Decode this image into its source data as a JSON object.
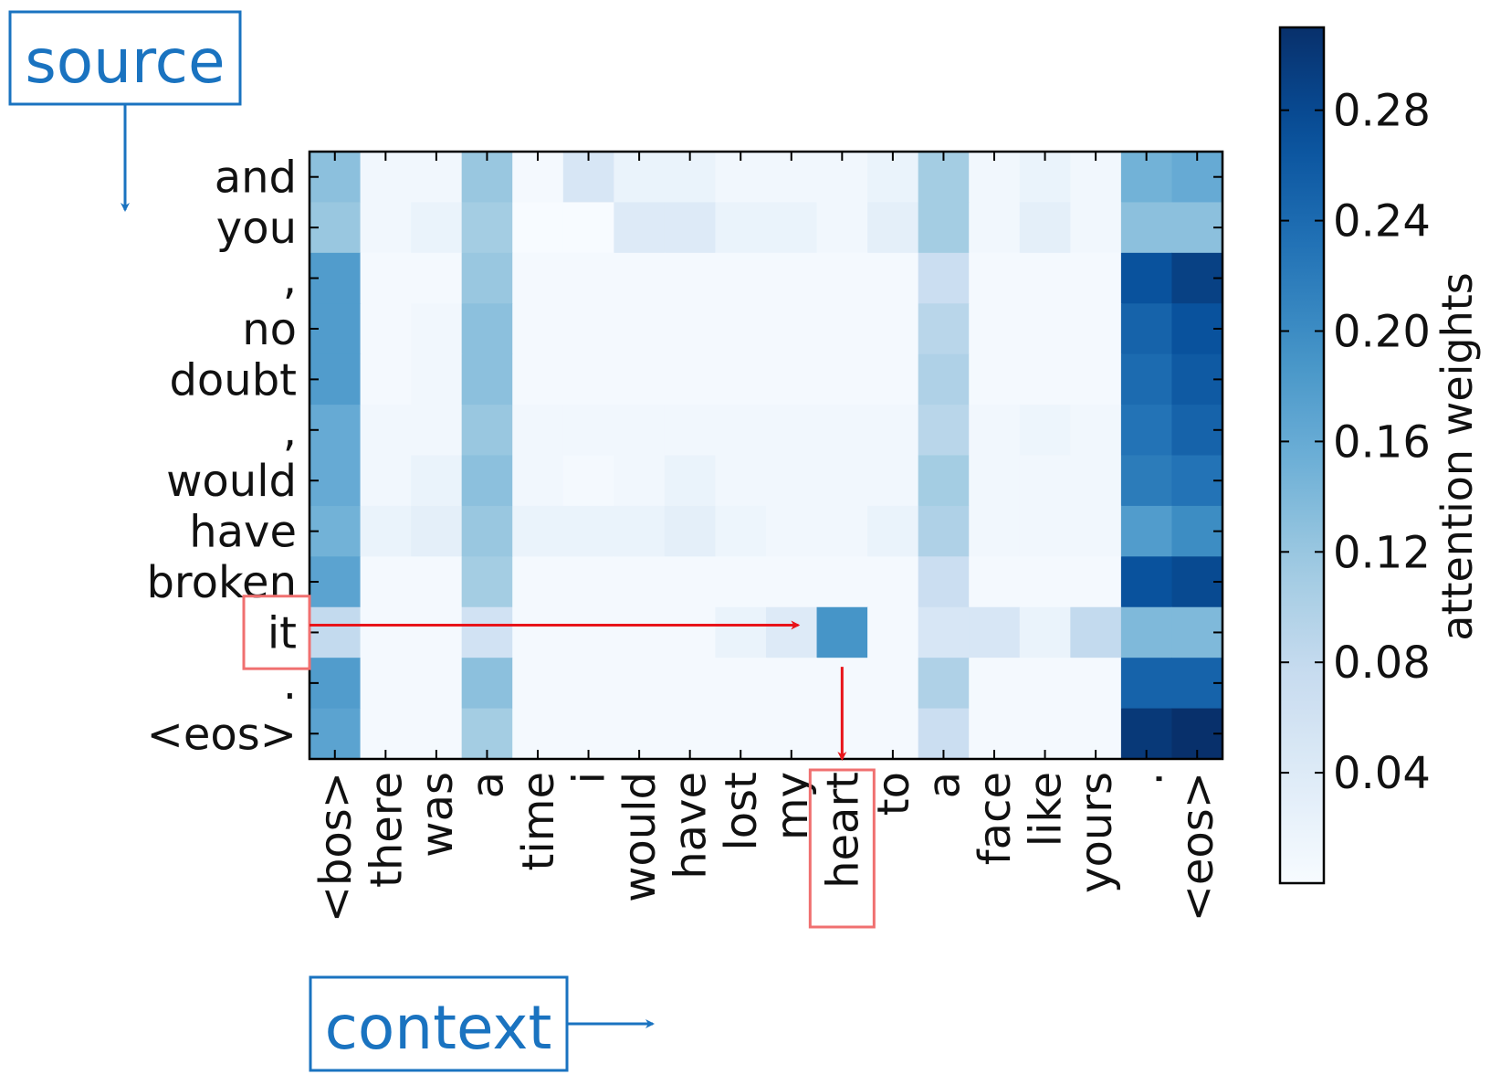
{
  "annotations": {
    "source_label": "source",
    "context_label": "context",
    "source_color": "#1a73c0",
    "highlight_color": "#f07070",
    "arrow_color": "#e8141a",
    "highlight_row": "it",
    "highlight_col": "heart"
  },
  "chart_data": {
    "type": "heatmap",
    "title": "",
    "xlabel": "",
    "ylabel": "",
    "colormap": "Blues",
    "x": [
      "<bos>",
      "there",
      "was",
      "a",
      "time",
      "i",
      "would",
      "have",
      "lost",
      "my",
      "heart",
      "to",
      "a",
      "face",
      "like",
      "yours",
      ".",
      "<eos>"
    ],
    "y": [
      "and",
      "you",
      ",",
      "no",
      "doubt",
      ",",
      "would",
      "have",
      "broken",
      "it",
      ".",
      "<eos>"
    ],
    "values": [
      [
        0.13,
        0.01,
        0.01,
        0.12,
        0.005,
        0.05,
        0.02,
        0.02,
        0.01,
        0.01,
        0.01,
        0.02,
        0.11,
        0.01,
        0.02,
        0.01,
        0.15,
        0.16
      ],
      [
        0.12,
        0.01,
        0.02,
        0.11,
        0.0,
        0.0,
        0.04,
        0.04,
        0.02,
        0.02,
        0.01,
        0.03,
        0.11,
        0.01,
        0.03,
        0.01,
        0.13,
        0.13
      ],
      [
        0.18,
        0.005,
        0.005,
        0.12,
        0.005,
        0.005,
        0.005,
        0.005,
        0.005,
        0.005,
        0.005,
        0.005,
        0.07,
        0.005,
        0.005,
        0.005,
        0.27,
        0.29
      ],
      [
        0.18,
        0.005,
        0.01,
        0.13,
        0.005,
        0.005,
        0.005,
        0.005,
        0.005,
        0.005,
        0.005,
        0.005,
        0.09,
        0.005,
        0.005,
        0.005,
        0.25,
        0.27
      ],
      [
        0.18,
        0.005,
        0.01,
        0.13,
        0.005,
        0.005,
        0.005,
        0.005,
        0.005,
        0.005,
        0.005,
        0.005,
        0.1,
        0.005,
        0.005,
        0.005,
        0.24,
        0.26
      ],
      [
        0.16,
        0.01,
        0.01,
        0.12,
        0.01,
        0.01,
        0.01,
        0.01,
        0.01,
        0.01,
        0.01,
        0.01,
        0.09,
        0.01,
        0.015,
        0.01,
        0.23,
        0.25
      ],
      [
        0.16,
        0.01,
        0.02,
        0.13,
        0.01,
        0.005,
        0.01,
        0.02,
        0.01,
        0.01,
        0.01,
        0.01,
        0.11,
        0.01,
        0.01,
        0.01,
        0.22,
        0.23
      ],
      [
        0.15,
        0.02,
        0.03,
        0.12,
        0.02,
        0.02,
        0.02,
        0.03,
        0.015,
        0.01,
        0.01,
        0.02,
        0.1,
        0.01,
        0.01,
        0.01,
        0.18,
        0.2
      ],
      [
        0.17,
        0.005,
        0.005,
        0.11,
        0.005,
        0.005,
        0.005,
        0.005,
        0.005,
        0.005,
        0.005,
        0.005,
        0.07,
        0.005,
        0.005,
        0.005,
        0.27,
        0.28
      ],
      [
        0.08,
        0.005,
        0.005,
        0.06,
        0.005,
        0.005,
        0.005,
        0.005,
        0.02,
        0.04,
        0.19,
        0.005,
        0.05,
        0.05,
        0.02,
        0.08,
        0.14,
        0.14
      ],
      [
        0.18,
        0.005,
        0.005,
        0.13,
        0.005,
        0.005,
        0.005,
        0.005,
        0.005,
        0.005,
        0.005,
        0.005,
        0.1,
        0.005,
        0.005,
        0.005,
        0.25,
        0.25
      ],
      [
        0.17,
        0.005,
        0.005,
        0.11,
        0.005,
        0.005,
        0.005,
        0.005,
        0.005,
        0.005,
        0.005,
        0.005,
        0.07,
        0.005,
        0.005,
        0.005,
        0.3,
        0.31
      ]
    ],
    "colorbar": {
      "label": "attention weights",
      "range": [
        0.0,
        0.31
      ],
      "ticks": [
        0.04,
        0.08,
        0.12,
        0.16,
        0.2,
        0.24,
        0.28
      ],
      "tick_labels": [
        "0.04",
        "0.08",
        "0.12",
        "0.16",
        "0.20",
        "0.24",
        "0.28"
      ]
    }
  }
}
